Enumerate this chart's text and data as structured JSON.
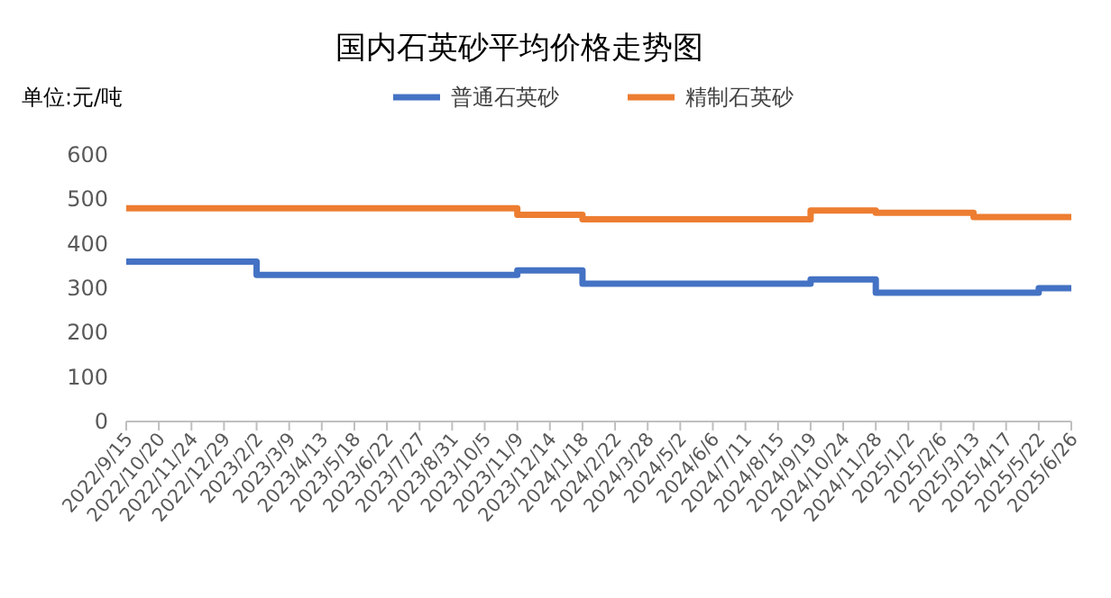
{
  "chart_data": {
    "type": "step",
    "title": "国内石英砂平均价格走势图",
    "ylabel": "单位:元/吨",
    "categories": [
      "2022/9/15",
      "2022/10/20",
      "2022/11/24",
      "2022/12/29",
      "2023/2/2",
      "2023/3/9",
      "2023/4/13",
      "2023/5/18",
      "2023/6/22",
      "2023/7/27",
      "2023/8/31",
      "2023/10/5",
      "2023/11/9",
      "2023/12/14",
      "2024/1/18",
      "2024/2/22",
      "2024/3/28",
      "2024/5/2",
      "2024/6/6",
      "2024/7/11",
      "2024/8/15",
      "2024/9/19",
      "2024/10/24",
      "2024/11/28",
      "2025/1/2",
      "2025/2/6",
      "2025/3/13",
      "2025/4/17",
      "2025/5/22",
      "2025/6/26"
    ],
    "series": [
      {
        "name": "普通石英砂",
        "color": "#4472c4",
        "values": [
          360,
          360,
          360,
          360,
          330,
          330,
          330,
          330,
          330,
          330,
          330,
          330,
          340,
          340,
          310,
          310,
          310,
          310,
          310,
          310,
          310,
          320,
          320,
          290,
          290,
          290,
          290,
          290,
          300,
          300
        ]
      },
      {
        "name": "精制石英砂",
        "color": "#ed7d31",
        "values": [
          480,
          480,
          480,
          480,
          480,
          480,
          480,
          480,
          480,
          480,
          480,
          480,
          465,
          465,
          455,
          455,
          455,
          455,
          455,
          455,
          455,
          475,
          475,
          470,
          470,
          470,
          460,
          460,
          460,
          460
        ]
      }
    ],
    "ylim": [
      0,
      600
    ],
    "yticks": [
      0,
      100,
      200,
      300,
      400,
      500,
      600
    ],
    "grid": false,
    "legend": "top"
  }
}
